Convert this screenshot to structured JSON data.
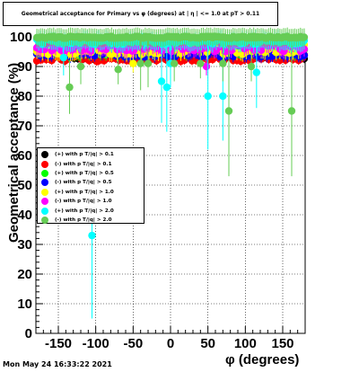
{
  "title": "Geometrical acceptance for Primary vs φ (degrees) at | η | <= 1.0 at pT > 0.11",
  "timestamp": "Mon May 24 16:33:22 2021",
  "colors": {
    "plus_pt_0_1": "#000000",
    "minus_pt_0_1": "#ff0000",
    "plus_pt_0_5": "#00ff00",
    "minus_pt_0_5": "#0000ff",
    "plus_pt_1_0": "#ffff00",
    "minus_pt_1_0": "#ff00ff",
    "plus_pt_2_0": "#00ffff",
    "minus_pt_2_0": "#66cc55"
  },
  "chart_data": {
    "type": "scatter",
    "title": "Geometrical acceptance for Primary vs φ (degrees) at | η | <= 1.0 at pT > 0.11",
    "xlabel": "φ (degrees)",
    "ylabel": "Geometrical acceptance (%)",
    "xlim": [
      -180,
      180
    ],
    "ylim": [
      0,
      100
    ],
    "xticks": [
      -150,
      -100,
      -50,
      0,
      50,
      100,
      150
    ],
    "yticks": [
      0,
      10,
      20,
      30,
      40,
      50,
      60,
      70,
      80,
      90,
      100
    ],
    "grid": true,
    "legend_position": "left-middle",
    "legend": [
      "(+) with p T/|q| > 0.1",
      "(-) with p T/|q| > 0.1",
      "(+) with p T/|q| > 0.5",
      "(-) with p T/|q| > 0.5",
      "(+) with p T/|q| > 1.0",
      "(-) with p T/|q| > 1.0",
      "(+) with p T/|q| > 2.0",
      "(-) with p T/|q| > 2.0"
    ],
    "series": [
      {
        "name": "(+) with p T/|q| > 0.1",
        "color": "#000000",
        "base": 94.0,
        "spread": 1.0,
        "err": 1.5,
        "outliers": []
      },
      {
        "name": "(-) with p T/|q| > 0.1",
        "color": "#ff0000",
        "base": 93.5,
        "spread": 1.2,
        "err": 1.5,
        "outliers": []
      },
      {
        "name": "(+) with p T/|q| > 0.5",
        "color": "#00ff00",
        "base": 96.0,
        "spread": 1.5,
        "err": 2.0,
        "outliers": []
      },
      {
        "name": "(-) with p T/|q| > 0.5",
        "color": "#0000ff",
        "base": 95.0,
        "spread": 1.2,
        "err": 2.0,
        "outliers": []
      },
      {
        "name": "(+) with p T/|q| > 1.0",
        "color": "#ffff00",
        "base": 97.0,
        "spread": 2.0,
        "err": 2.5,
        "outliers": [
          [
            -50,
            91,
            3
          ]
        ]
      },
      {
        "name": "(-) with p T/|q| > 1.0",
        "color": "#ff00ff",
        "base": 98.0,
        "spread": 2.0,
        "err": 2.5,
        "outliers": [
          [
            48,
            90,
            3
          ]
        ]
      },
      {
        "name": "(+) with p T/|q| > 2.0",
        "color": "#00ffff",
        "base": 99.0,
        "spread": 1.0,
        "err": 3.0,
        "outliers": [
          [
            -143,
            93,
            6
          ],
          [
            -105,
            33,
            28
          ],
          [
            -12,
            85,
            14
          ],
          [
            -5,
            83,
            15
          ],
          [
            0,
            91,
            8
          ],
          [
            50,
            80,
            18
          ],
          [
            70,
            80,
            15
          ],
          [
            115,
            88,
            12
          ],
          [
            -35,
            100,
            4
          ]
        ]
      },
      {
        "name": "(-) with p T/|q| > 2.0",
        "color": "#66cc55",
        "base": 100.0,
        "spread": 0.3,
        "err": 3.0,
        "outliers": [
          [
            -135,
            83,
            9
          ],
          [
            -120,
            90,
            6
          ],
          [
            -70,
            89,
            5
          ],
          [
            -40,
            91,
            9
          ],
          [
            -30,
            91,
            8
          ],
          [
            5,
            91,
            6
          ],
          [
            40,
            91,
            5
          ],
          [
            70,
            91,
            6
          ],
          [
            78,
            75,
            22
          ],
          [
            108,
            90,
            5
          ],
          [
            162,
            75,
            22
          ]
        ]
      }
    ]
  }
}
